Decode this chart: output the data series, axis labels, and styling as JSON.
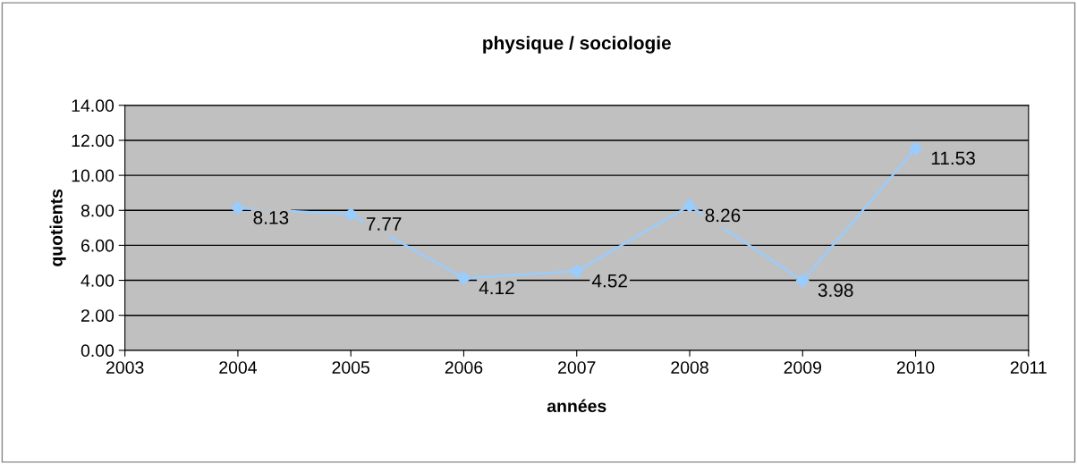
{
  "chart_data": {
    "type": "line",
    "title": "physique / sociologie",
    "xlabel": "années",
    "ylabel": "quotients",
    "x": [
      2004,
      2005,
      2006,
      2007,
      2008,
      2009,
      2010
    ],
    "series": [
      {
        "color": "#99ccff",
        "values": [
          8.13,
          7.77,
          4.12,
          4.52,
          8.26,
          3.98,
          11.53
        ]
      }
    ],
    "xlim": [
      2003,
      2011
    ],
    "xticks": [
      2003,
      2004,
      2005,
      2006,
      2007,
      2008,
      2009,
      2010,
      2011
    ],
    "ylim": [
      0,
      14
    ],
    "yticks": [
      {
        "value": 0,
        "label": "0.00"
      },
      {
        "value": 2,
        "label": "2.00"
      },
      {
        "value": 4,
        "label": "4.00"
      },
      {
        "value": 6,
        "label": "6.00"
      },
      {
        "value": 8,
        "label": "8.00"
      },
      {
        "value": 10,
        "label": "10.00"
      },
      {
        "value": 12,
        "label": "12.00"
      },
      {
        "value": 14,
        "label": "14.00"
      }
    ],
    "grid": "y",
    "marker": "diamond",
    "line_style": "solid",
    "data_labels": true
  }
}
